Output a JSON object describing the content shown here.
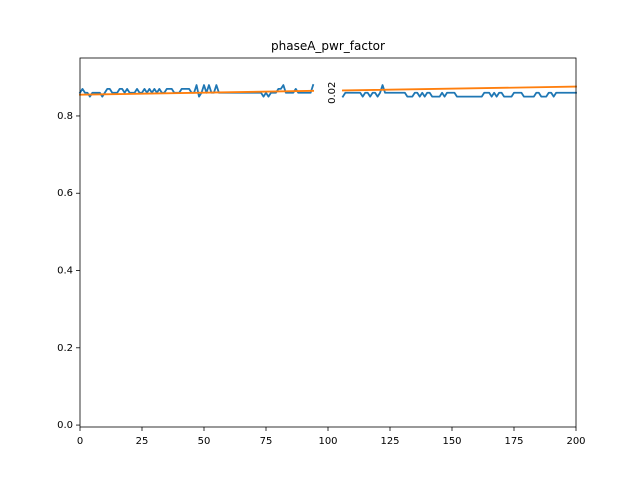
{
  "chart_data": {
    "type": "line",
    "title": "phaseA_pwr_factor",
    "xlabel": "",
    "ylabel": "",
    "xlim": [
      0,
      200
    ],
    "ylim": [
      -0.005,
      0.95
    ],
    "xticks": [
      0,
      25,
      50,
      75,
      100,
      125,
      150,
      175,
      200
    ],
    "yticks": [
      0.0,
      0.2,
      0.4,
      0.6,
      0.8
    ],
    "ytick_labels": [
      "0.0",
      "0.2",
      "0.4",
      "0.6",
      "0.8"
    ],
    "grid": false,
    "series": [
      {
        "color": "#1f77b4",
        "segments": [
          {
            "x": [
              0,
              1,
              2,
              3,
              4,
              5,
              6,
              7,
              8,
              9,
              10,
              11,
              12,
              13,
              14,
              15,
              16,
              17,
              18,
              19,
              20,
              21,
              22,
              23,
              24,
              25,
              26,
              27,
              28,
              29,
              30,
              31,
              32,
              33,
              34,
              35,
              36,
              37,
              38,
              39,
              40,
              41,
              42,
              43,
              44,
              45,
              46,
              47,
              48,
              49,
              50,
              51,
              52,
              53,
              54,
              55,
              56,
              57,
              58,
              59,
              60,
              61,
              62,
              63,
              64,
              65,
              66,
              67,
              68,
              69,
              70,
              71,
              72,
              73,
              74,
              75,
              76,
              77,
              78,
              79,
              80,
              81,
              82,
              83,
              84,
              85,
              86,
              87,
              88,
              89,
              90,
              91,
              92,
              93,
              94
            ],
            "y": [
              0.86,
              0.87,
              0.86,
              0.86,
              0.85,
              0.86,
              0.86,
              0.86,
              0.86,
              0.85,
              0.86,
              0.87,
              0.87,
              0.86,
              0.86,
              0.86,
              0.87,
              0.87,
              0.86,
              0.87,
              0.86,
              0.86,
              0.86,
              0.87,
              0.86,
              0.86,
              0.87,
              0.86,
              0.87,
              0.86,
              0.87,
              0.86,
              0.87,
              0.86,
              0.86,
              0.87,
              0.87,
              0.87,
              0.86,
              0.86,
              0.86,
              0.87,
              0.87,
              0.87,
              0.87,
              0.86,
              0.86,
              0.88,
              0.85,
              0.86,
              0.88,
              0.86,
              0.88,
              0.86,
              0.86,
              0.88,
              0.86,
              0.86,
              0.86,
              0.86,
              0.86,
              0.86,
              0.86,
              0.86,
              0.86,
              0.86,
              0.86,
              0.86,
              0.86,
              0.86,
              0.86,
              0.86,
              0.86,
              0.86,
              0.85,
              0.86,
              0.85,
              0.86,
              0.86,
              0.86,
              0.87,
              0.87,
              0.88,
              0.86,
              0.86,
              0.86,
              0.86,
              0.87,
              0.86,
              0.86,
              0.86,
              0.86,
              0.86,
              0.86,
              0.88
            ]
          },
          {
            "x": [
              106,
              107,
              108,
              109,
              110,
              111,
              112,
              113,
              114,
              115,
              116,
              117,
              118,
              119,
              120,
              121,
              122,
              123,
              124,
              125,
              126,
              127,
              128,
              129,
              130,
              131,
              132,
              133,
              134,
              135,
              136,
              137,
              138,
              139,
              140,
              141,
              142,
              143,
              144,
              145,
              146,
              147,
              148,
              149,
              150,
              151,
              152,
              153,
              154,
              155,
              156,
              157,
              158,
              159,
              160,
              161,
              162,
              163,
              164,
              165,
              166,
              167,
              168,
              169,
              170,
              171,
              172,
              173,
              174,
              175,
              176,
              177,
              178,
              179,
              180,
              181,
              182,
              183,
              184,
              185,
              186,
              187,
              188,
              189,
              190,
              191,
              192,
              193,
              194,
              195,
              196,
              197,
              198,
              199,
              200
            ],
            "y": [
              0.85,
              0.86,
              0.86,
              0.86,
              0.86,
              0.86,
              0.86,
              0.86,
              0.85,
              0.86,
              0.86,
              0.85,
              0.86,
              0.86,
              0.85,
              0.86,
              0.88,
              0.86,
              0.86,
              0.86,
              0.86,
              0.86,
              0.86,
              0.86,
              0.86,
              0.86,
              0.85,
              0.85,
              0.85,
              0.86,
              0.86,
              0.85,
              0.86,
              0.85,
              0.86,
              0.86,
              0.85,
              0.85,
              0.85,
              0.85,
              0.86,
              0.85,
              0.86,
              0.86,
              0.86,
              0.86,
              0.85,
              0.85,
              0.85,
              0.85,
              0.85,
              0.85,
              0.85,
              0.85,
              0.85,
              0.85,
              0.85,
              0.86,
              0.86,
              0.86,
              0.85,
              0.86,
              0.85,
              0.86,
              0.86,
              0.85,
              0.85,
              0.85,
              0.85,
              0.86,
              0.86,
              0.86,
              0.86,
              0.85,
              0.85,
              0.85,
              0.85,
              0.85,
              0.86,
              0.86,
              0.85,
              0.85,
              0.85,
              0.86,
              0.86,
              0.85,
              0.86,
              0.86,
              0.86,
              0.86,
              0.86,
              0.86,
              0.86,
              0.86,
              0.86
            ]
          }
        ]
      },
      {
        "color": "#ff7f0e",
        "segments": [
          {
            "x": [
              0,
              94
            ],
            "y": [
              0.855,
              0.865
            ]
          },
          {
            "x": [
              106,
              200
            ],
            "y": [
              0.866,
              0.876
            ]
          }
        ]
      }
    ],
    "annotations": [
      {
        "text": "0.02",
        "x": 100,
        "y": 0.86,
        "rotation": -90
      }
    ]
  }
}
